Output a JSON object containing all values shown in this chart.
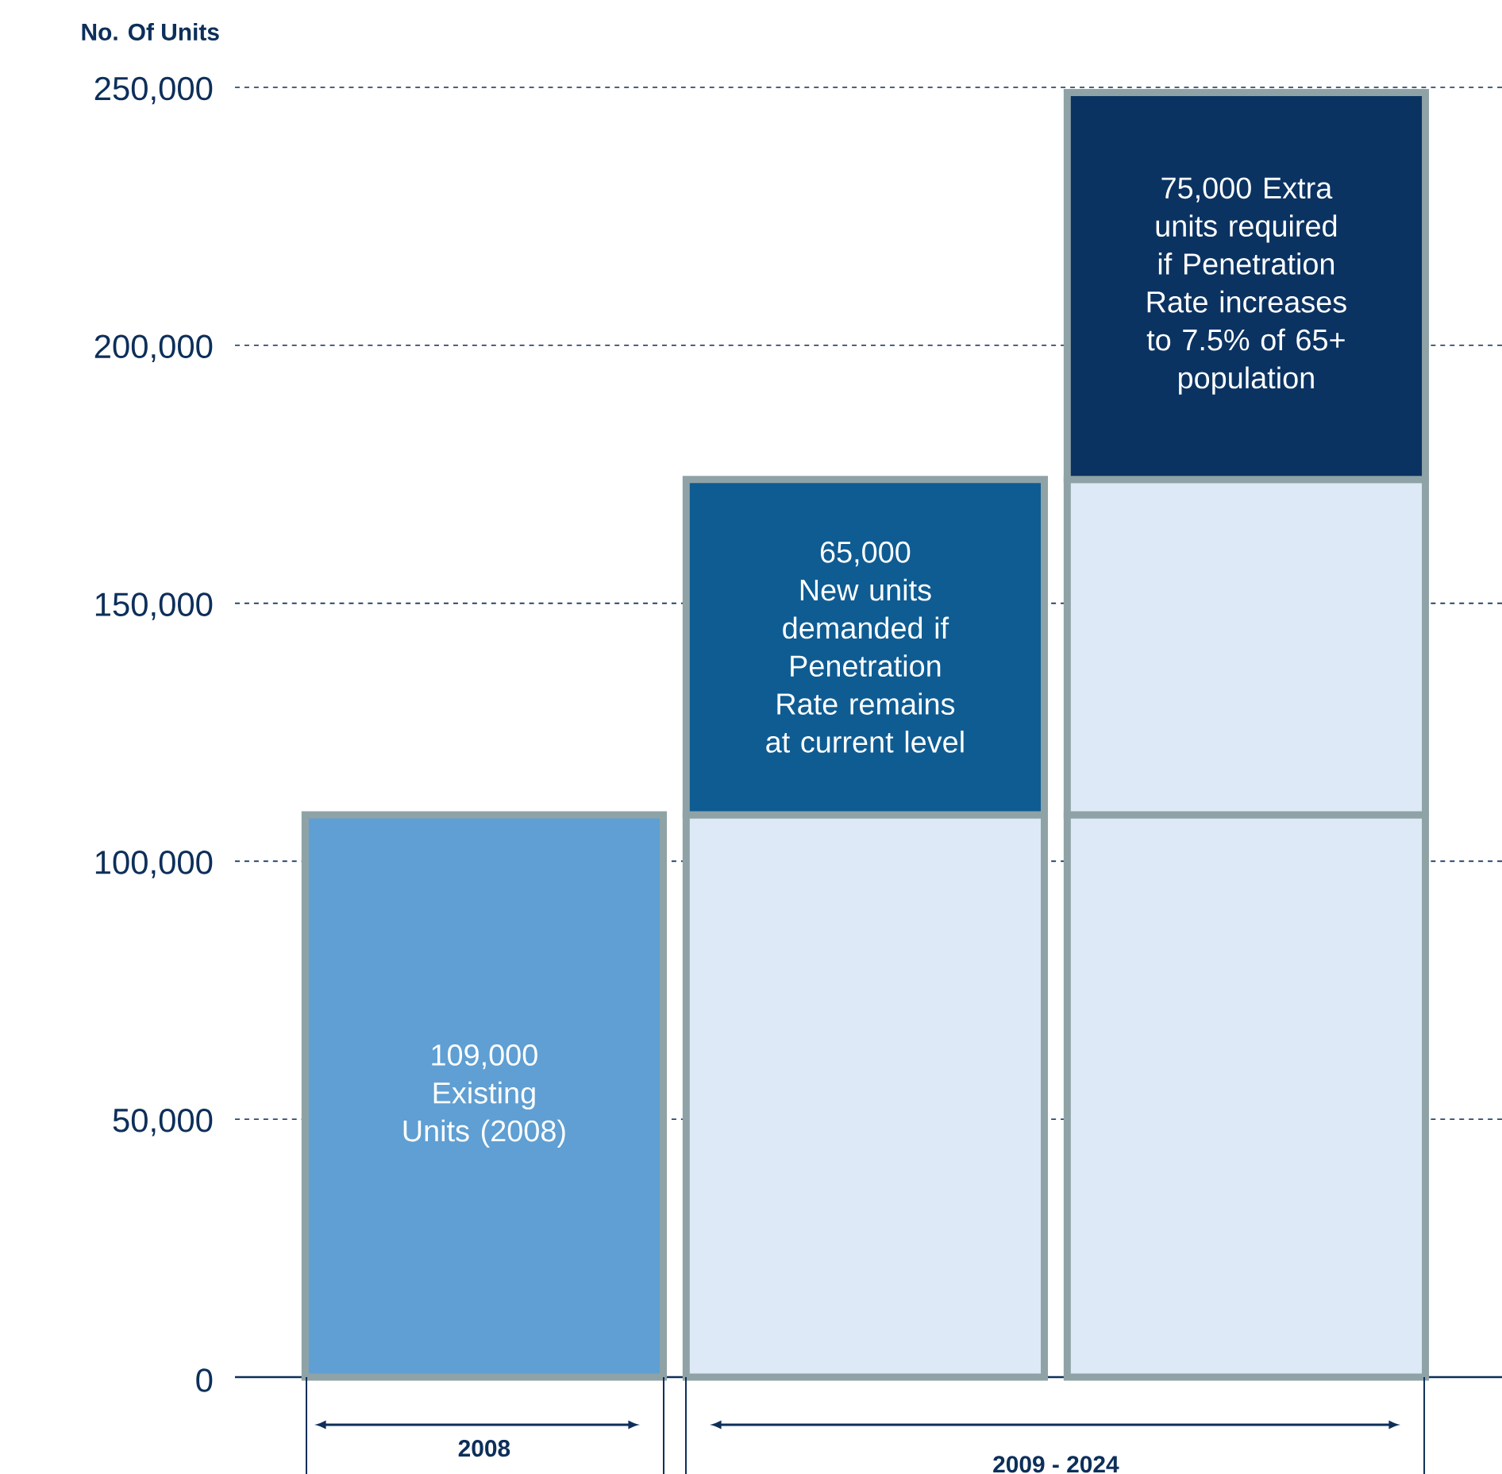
{
  "chart_data": {
    "type": "bar",
    "stacked": true,
    "ylabel": "No. Of Units",
    "categories": [
      "2008",
      null,
      null
    ],
    "series": [
      {
        "values": [
          109000,
          109000,
          109000
        ],
        "colors": [
          "#5f9fd3",
          "#dde9f6",
          "#dde9f6"
        ],
        "value_labels": [
          "109,000 Existing Units (2008)",
          null,
          null
        ]
      },
      {
        "values": [
          null,
          65000,
          65000
        ],
        "colors": [
          null,
          "#0f5c93",
          "#dde9f6"
        ],
        "value_labels": [
          null,
          "65,000 New units demanded if Penetration Rate remains at current level",
          null
        ]
      },
      {
        "values": [
          null,
          null,
          75000
        ],
        "colors": [
          null,
          null,
          "#0b3362"
        ],
        "value_labels": [
          null,
          null,
          "75,000 Extra units required if Penetration Rate increases to 7.5% of 65+ population"
        ]
      }
    ],
    "ylim": [
      0,
      250000
    ],
    "yticks": [
      0,
      {
        "value": 50000,
        "label": "50,000"
      },
      {
        "value": 100000,
        "label": "100,000"
      },
      {
        "value": 150000,
        "label": "150,000"
      },
      {
        "value": 200000,
        "label": "200,000"
      },
      {
        "value": 250000,
        "label": "250,000"
      }
    ],
    "grid": "y",
    "annotations": [
      "2009 - 2024"
    ]
  }
}
